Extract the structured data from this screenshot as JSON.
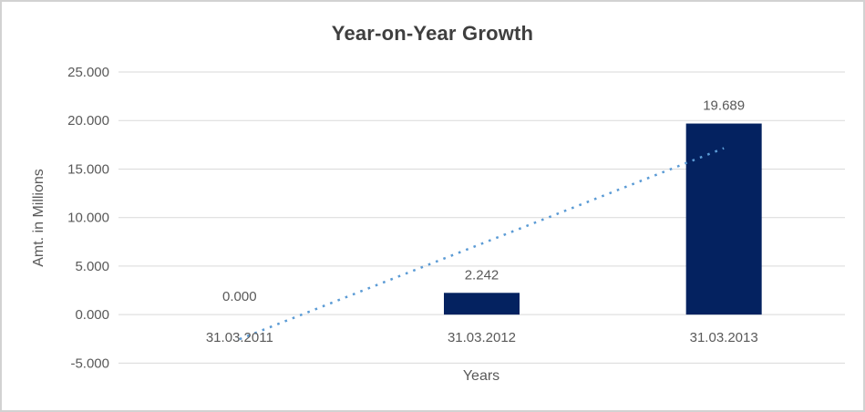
{
  "chart_data": {
    "type": "bar",
    "title": "Year-on-Year Growth",
    "xlabel": "Years",
    "ylabel": "Amt. in Millions",
    "categories": [
      "31.03.2011",
      "31.03.2012",
      "31.03.2013"
    ],
    "values": [
      0.0,
      2.242,
      19.689
    ],
    "data_labels": [
      "0.000",
      "2.242",
      "19.689"
    ],
    "ylim": [
      -5,
      25
    ],
    "ytick_step": 5,
    "yticks": [
      25,
      20,
      15,
      10,
      5,
      0,
      -5
    ],
    "ytick_labels": [
      "25.000",
      "20.000",
      "15.000",
      "10.000",
      "5.000",
      "0.000",
      "-5.000"
    ],
    "grid": true,
    "legend": "none",
    "trendline": {
      "kind": "linear",
      "style": "dotted",
      "start_value": -2.53,
      "end_value": 17.15
    },
    "colors": {
      "bar": "#042260",
      "trendline": "#5b9bd5",
      "gridline": "#d9d9d9",
      "title": "#3f3f3f",
      "labels": "#595959",
      "frame_border": "#d2d2d2",
      "background": "#ffffff"
    }
  }
}
